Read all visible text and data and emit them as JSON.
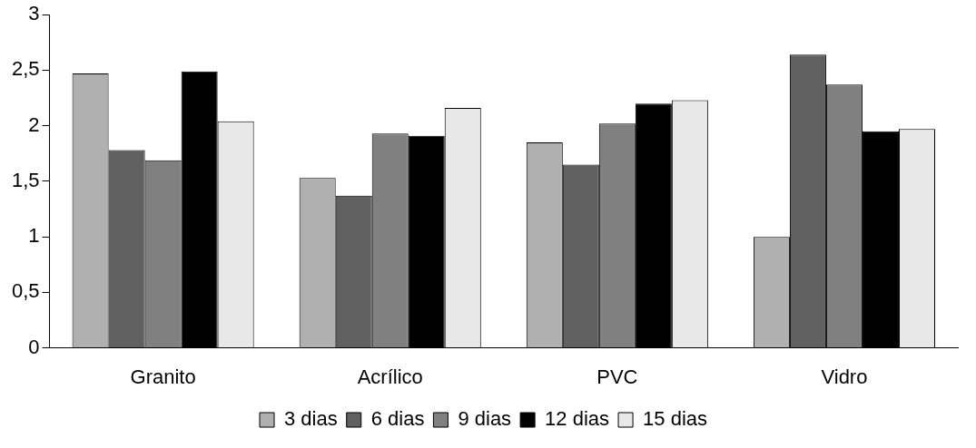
{
  "chart_data": {
    "type": "bar",
    "categories": [
      "Granito",
      "Acrílico",
      "PVC",
      "Vidro"
    ],
    "series": [
      {
        "name": "3 dias",
        "color": "#b0b0b0",
        "values": [
          2.47,
          1.53,
          1.85,
          1.0
        ]
      },
      {
        "name": "6 dias",
        "color": "#606060",
        "values": [
          1.78,
          1.37,
          1.65,
          2.64
        ]
      },
      {
        "name": "9 dias",
        "color": "#808080",
        "values": [
          1.69,
          1.93,
          2.02,
          2.37
        ]
      },
      {
        "name": "12 dias",
        "color": "#000000",
        "values": [
          2.49,
          1.91,
          2.2,
          1.95
        ]
      },
      {
        "name": "15 dias",
        "color": "#e8e8e8",
        "values": [
          2.04,
          2.16,
          2.23,
          1.97
        ]
      }
    ],
    "ylim": [
      0,
      3
    ],
    "yticks": [
      0,
      {
        "value": 0.5,
        "label": "0,5"
      },
      1,
      {
        "value": 1.5,
        "label": "1,5"
      },
      2,
      {
        "value": 2.5,
        "label": "2,5"
      },
      3
    ],
    "grid": false,
    "legend": "bottom"
  }
}
